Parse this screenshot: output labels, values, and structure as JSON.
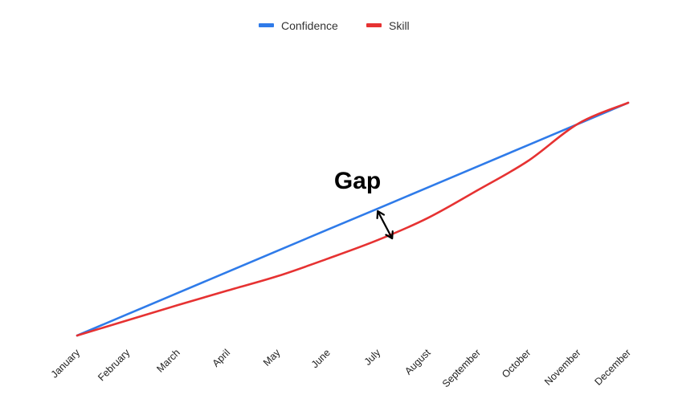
{
  "chart_data": {
    "type": "line",
    "title": "",
    "xlabel": "",
    "ylabel": "",
    "grid": false,
    "legend_position": "top-center",
    "categories": [
      "January",
      "February",
      "March",
      "April",
      "May",
      "June",
      "July",
      "August",
      "September",
      "October",
      "November",
      "December"
    ],
    "ylim": [
      0,
      100
    ],
    "series": [
      {
        "name": "Confidence",
        "color": "#2f7be9",
        "values": [
          0,
          9.1,
          18.2,
          27.3,
          36.4,
          45.5,
          54.5,
          63.6,
          72.7,
          81.8,
          90.9,
          100
        ]
      },
      {
        "name": "Skill",
        "color": "#e63232",
        "values": [
          0,
          6.5,
          13.0,
          19.3,
          25.5,
          33.0,
          41.0,
          50.5,
          62.5,
          75.0,
          91.0,
          100
        ]
      }
    ],
    "annotations": [
      {
        "text": "Gap",
        "category": "July",
        "between_series": [
          "Confidence",
          "Skill"
        ],
        "marker": "double-arrow",
        "color": "#000000"
      }
    ]
  }
}
